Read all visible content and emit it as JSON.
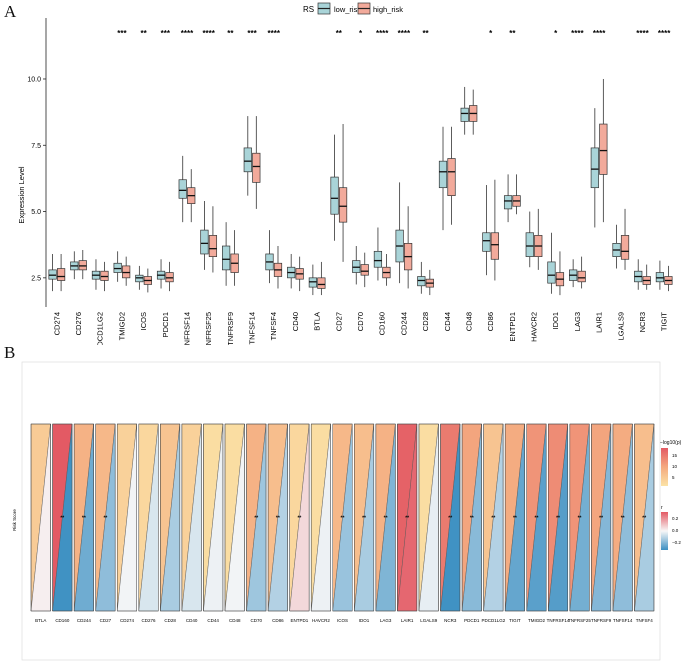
{
  "panels": {
    "a": "A",
    "b": "B"
  },
  "chart_data": [
    {
      "type": "boxplot",
      "title": "",
      "ylabel": "Expression Level",
      "xlabel": "",
      "ylim": [
        1.4,
        12.3
      ],
      "yticks": [
        "2.5",
        "5.0",
        "7.5",
        "10.0"
      ],
      "ytick_values": [
        2.5,
        5.0,
        7.5,
        10.0
      ],
      "legend": {
        "title": "RS",
        "position": "top",
        "groups": [
          "low_risk",
          "high_risk"
        ],
        "colors": [
          "#a9d4d8",
          "#f2aa9b"
        ]
      },
      "categories": [
        "CD274",
        "CD276",
        "PDCD1LG2",
        "TMIGD2",
        "ICOS",
        "PDCD1",
        "TNFRSF14",
        "TNFRSF25",
        "TNFRSF9",
        "TNFSF14",
        "TNFSF4",
        "CD40",
        "BTLA",
        "CD27",
        "CD70",
        "CD160",
        "CD244",
        "CD28",
        "CD44",
        "CD48",
        "CD86",
        "ENTPD1",
        "HAVCR2",
        "IDO1",
        "LAG3",
        "LAIR1",
        "LGALS9",
        "NCR3",
        "TIGIT"
      ],
      "significance": [
        "",
        "",
        "",
        "***",
        "**",
        "***",
        "****",
        "****",
        "**",
        "***",
        "****",
        "",
        "",
        "**",
        "*",
        "****",
        "****",
        "**",
        "",
        "",
        "*",
        "**",
        "",
        "*",
        "****",
        "****",
        "",
        "****",
        "****"
      ],
      "series": [
        {
          "name": "low_risk",
          "boxes": [
            [
              2.0,
              2.45,
              2.6,
              2.8,
              3.4
            ],
            [
              2.45,
              2.8,
              2.95,
              3.1,
              3.5
            ],
            [
              2.05,
              2.45,
              2.6,
              2.75,
              3.2
            ],
            [
              2.35,
              2.7,
              2.85,
              3.05,
              3.5
            ],
            [
              2.05,
              2.35,
              2.5,
              2.6,
              2.95
            ],
            [
              2.1,
              2.45,
              2.6,
              2.75,
              3.2
            ],
            [
              4.6,
              5.5,
              5.8,
              6.2,
              7.1
            ],
            [
              2.8,
              3.4,
              3.8,
              4.3,
              5.4
            ],
            [
              2.2,
              2.8,
              3.2,
              3.7,
              4.6
            ],
            [
              5.6,
              6.5,
              6.9,
              7.4,
              8.6
            ],
            [
              2.3,
              2.8,
              3.1,
              3.4,
              4.3
            ],
            [
              2.1,
              2.5,
              2.7,
              2.9,
              3.4
            ],
            [
              1.85,
              2.15,
              2.35,
              2.5,
              3.0
            ],
            [
              3.9,
              4.9,
              5.5,
              6.3,
              7.9
            ],
            [
              2.25,
              2.7,
              2.9,
              3.15,
              3.7
            ],
            [
              2.4,
              2.9,
              3.15,
              3.5,
              4.4
            ],
            [
              2.3,
              3.1,
              3.7,
              4.3,
              6.1
            ],
            [
              1.9,
              2.2,
              2.4,
              2.55,
              3.1
            ],
            [
              4.3,
              5.9,
              6.5,
              6.9,
              8.2
            ],
            [
              7.9,
              8.4,
              8.7,
              8.9,
              9.7
            ],
            [
              2.6,
              3.5,
              3.9,
              4.2,
              6.0
            ],
            [
              4.6,
              5.1,
              5.4,
              5.6,
              6.4
            ],
            [
              2.9,
              3.3,
              3.7,
              4.2,
              5.0
            ],
            [
              1.9,
              2.3,
              2.6,
              3.1,
              4.2
            ],
            [
              2.15,
              2.4,
              2.6,
              2.8,
              3.2
            ],
            [
              4.4,
              5.9,
              6.6,
              7.4,
              8.9
            ],
            [
              2.85,
              3.3,
              3.55,
              3.8,
              4.5
            ],
            [
              2.05,
              2.35,
              2.55,
              2.75,
              3.2
            ],
            [
              2.05,
              2.35,
              2.5,
              2.7,
              3.15
            ]
          ]
        },
        {
          "name": "high_risk",
          "boxes": [
            [
              2.0,
              2.4,
              2.55,
              2.85,
              3.4
            ],
            [
              2.45,
              2.8,
              2.95,
              3.15,
              3.55
            ],
            [
              2.0,
              2.4,
              2.55,
              2.75,
              3.1
            ],
            [
              2.2,
              2.5,
              2.7,
              2.95,
              3.3
            ],
            [
              1.95,
              2.25,
              2.4,
              2.55,
              2.85
            ],
            [
              2.0,
              2.35,
              2.5,
              2.7,
              3.1
            ],
            [
              4.6,
              5.3,
              5.6,
              5.9,
              6.6
            ],
            [
              2.7,
              3.3,
              3.6,
              4.1,
              5.2
            ],
            [
              2.2,
              2.7,
              3.05,
              3.4,
              4.3
            ],
            [
              5.1,
              6.1,
              6.7,
              7.2,
              8.6
            ],
            [
              2.1,
              2.55,
              2.8,
              3.05,
              3.7
            ],
            [
              2.0,
              2.45,
              2.65,
              2.85,
              3.3
            ],
            [
              1.85,
              2.1,
              2.25,
              2.5,
              3.1
            ],
            [
              3.1,
              4.6,
              5.2,
              5.9,
              8.3
            ],
            [
              2.15,
              2.6,
              2.75,
              3.0,
              3.45
            ],
            [
              2.2,
              2.5,
              2.7,
              2.9,
              3.4
            ],
            [
              2.1,
              2.8,
              3.3,
              3.8,
              5.2
            ],
            [
              1.85,
              2.15,
              2.3,
              2.45,
              2.8
            ],
            [
              4.5,
              5.6,
              6.5,
              7.0,
              8.2
            ],
            [
              7.9,
              8.4,
              8.7,
              9.0,
              9.6
            ],
            [
              2.4,
              3.2,
              3.75,
              4.2,
              6.2
            ],
            [
              4.9,
              5.2,
              5.4,
              5.6,
              6.4
            ],
            [
              2.8,
              3.3,
              3.7,
              4.1,
              5.1
            ],
            [
              1.85,
              2.2,
              2.45,
              2.7,
              3.5
            ],
            [
              2.1,
              2.35,
              2.5,
              2.75,
              3.3
            ],
            [
              4.6,
              6.4,
              7.3,
              8.3,
              10.0
            ],
            [
              2.8,
              3.2,
              3.5,
              4.1,
              5.1
            ],
            [
              2.05,
              2.25,
              2.4,
              2.55,
              3.0
            ],
            [
              2.0,
              2.25,
              2.4,
              2.55,
              2.95
            ]
          ]
        }
      ]
    },
    {
      "type": "heatmap",
      "ylabel": "Risk Score",
      "categories": [
        "BTLA",
        "CD160",
        "CD244",
        "CD27",
        "CD274",
        "CD276",
        "CD28",
        "CD40",
        "CD44",
        "CD48",
        "CD70",
        "CD86",
        "ENTPD1",
        "HAVCR2",
        "ICOS",
        "IDO1",
        "LAG3",
        "LAIR1",
        "LGALS9",
        "NCR3",
        "PDCD1",
        "PDCD1LG2",
        "TIGIT",
        "TMIGD2",
        "TNFRSF14",
        "TNFRSF25",
        "TNFRSF9",
        "TNFSF14",
        "TNFSF4"
      ],
      "marks": [
        "",
        "**",
        "**",
        "**",
        "",
        "",
        "",
        "",
        "",
        "",
        "**",
        "**",
        "**",
        "",
        "**",
        "**",
        "**",
        "**",
        "",
        "**",
        "**",
        "**",
        "**",
        "**",
        "**",
        "**",
        "**",
        "**",
        "**"
      ],
      "neglog10p": [
        4,
        19,
        8,
        7,
        3,
        2,
        5,
        3,
        1,
        1,
        8,
        6,
        2,
        1,
        7,
        6,
        8,
        18,
        1,
        15,
        10,
        5,
        9,
        12,
        13,
        12,
        10,
        9,
        6
      ],
      "r": [
        0.02,
        -0.35,
        -0.26,
        -0.2,
        -0.01,
        -0.06,
        -0.15,
        -0.06,
        -0.02,
        -0.01,
        -0.17,
        -0.13,
        0.07,
        -0.02,
        -0.18,
        -0.15,
        -0.23,
        0.33,
        -0.03,
        -0.35,
        -0.21,
        -0.13,
        -0.28,
        -0.3,
        -0.31,
        -0.25,
        -0.22,
        -0.2,
        -0.15
      ],
      "legend_p": {
        "title": "−log10(p)",
        "ticks": [
          "15",
          "10",
          "5"
        ],
        "tick_values": [
          15,
          10,
          5
        ]
      },
      "legend_r": {
        "title": "r",
        "ticks": [
          "0.2",
          "0.0",
          "−0.2"
        ],
        "tick_values": [
          0.2,
          0.0,
          -0.2
        ]
      }
    }
  ]
}
